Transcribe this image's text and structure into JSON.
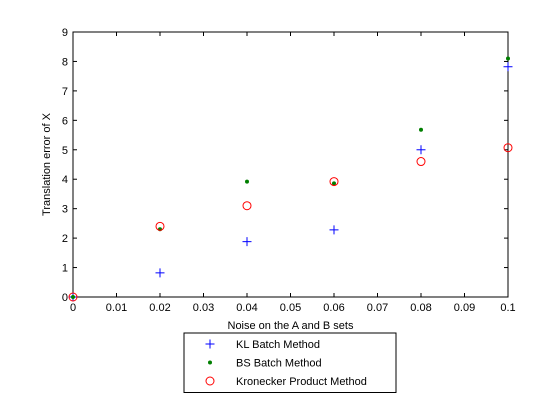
{
  "chart_data": {
    "type": "scatter",
    "title": "",
    "xlabel": "Noise on the A and B sets",
    "ylabel": "Translation error of X",
    "xlim": [
      0,
      0.1
    ],
    "ylim": [
      0,
      9
    ],
    "xticks": [
      "0",
      "0.01",
      "0.02",
      "0.03",
      "0.04",
      "0.05",
      "0.06",
      "0.07",
      "0.08",
      "0.09",
      "0.1"
    ],
    "yticks": [
      "0",
      "1",
      "2",
      "3",
      "4",
      "5",
      "6",
      "7",
      "8",
      "9"
    ],
    "grid": false,
    "legend_position": "bottom-outside",
    "series": [
      {
        "name": "KL Batch Method",
        "marker": "plus",
        "color": "#0000ff",
        "x": [
          0,
          0.02,
          0.04,
          0.06,
          0.08,
          0.1
        ],
        "y": [
          0,
          0.82,
          1.88,
          2.28,
          5.0,
          7.82
        ]
      },
      {
        "name": "BS Batch Method",
        "marker": "dot",
        "color": "#007f00",
        "x": [
          0,
          0.02,
          0.04,
          0.06,
          0.08,
          0.1
        ],
        "y": [
          0,
          2.3,
          3.92,
          3.86,
          5.68,
          8.1
        ]
      },
      {
        "name": "Kronecker Product Method",
        "marker": "circle",
        "color": "#ff0000",
        "x": [
          0,
          0.02,
          0.04,
          0.06,
          0.08,
          0.1
        ],
        "y": [
          0,
          2.4,
          3.1,
          3.92,
          4.6,
          5.07
        ]
      }
    ]
  }
}
